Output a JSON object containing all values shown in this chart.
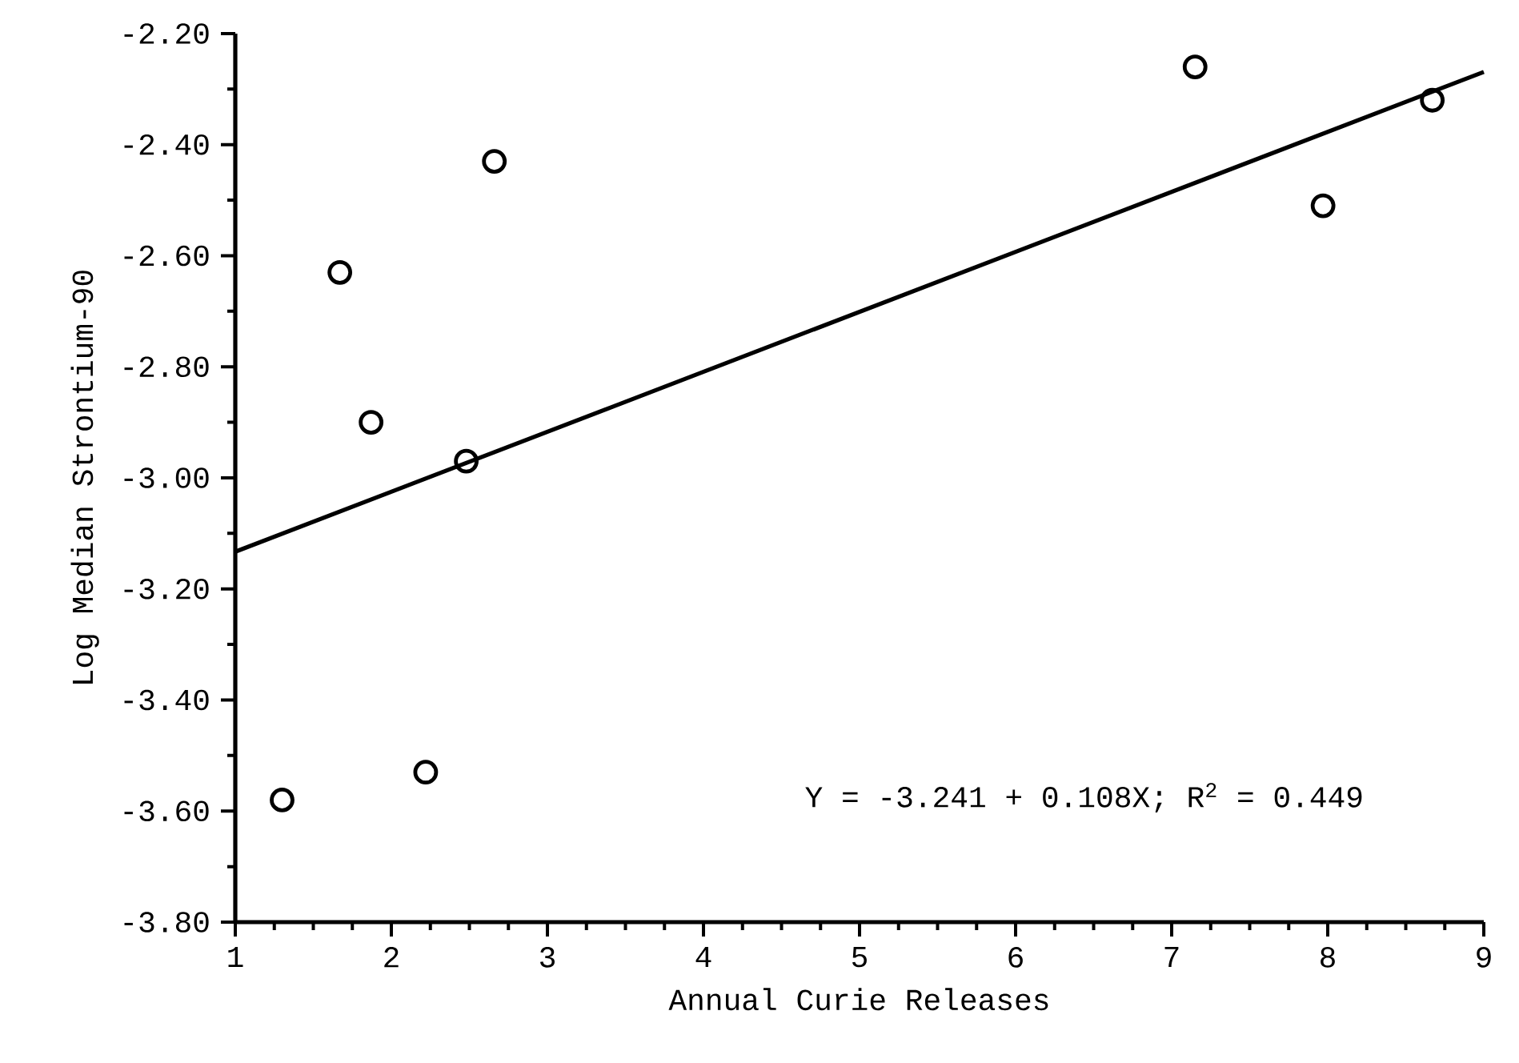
{
  "chart_data": {
    "type": "scatter",
    "xlabel": "Annual Curie Releases",
    "ylabel": "Log Median Strontium-90",
    "xlim": [
      1,
      9
    ],
    "xticks": [
      1,
      2,
      3,
      4,
      5,
      6,
      7,
      8,
      9
    ],
    "ylim": [
      -3.8,
      -2.2
    ],
    "yticks": [
      {
        "value": -3.8,
        "label": "-3.80"
      },
      {
        "value": -3.6,
        "label": "-3.60"
      },
      {
        "value": -3.4,
        "label": "-3.40"
      },
      {
        "value": -3.2,
        "label": "-3.20"
      },
      {
        "value": -3.0,
        "label": "-3.00"
      },
      {
        "value": -2.8,
        "label": "-2.80"
      },
      {
        "value": -2.6,
        "label": "-2.60"
      },
      {
        "value": -2.4,
        "label": "-2.40"
      },
      {
        "value": -2.2,
        "label": "-2.20"
      }
    ],
    "series": [
      {
        "color": "#000000",
        "marker": "circle",
        "x": [
          1.3,
          1.67,
          1.87,
          2.22,
          2.48,
          2.66,
          7.15,
          7.97,
          8.67
        ],
        "values": [
          -3.58,
          -2.63,
          -2.9,
          -3.53,
          -2.97,
          -2.43,
          -2.26,
          -2.51,
          -2.32
        ]
      },
      {
        "type": "line",
        "color": "#000000",
        "marker": "none",
        "line_style": "solid",
        "x": [
          1,
          9
        ],
        "values": [
          -3.133,
          -2.269
        ]
      }
    ],
    "annotations": [
      "Y = -3.241 + 0.108X; R$^{2}$  = 0.449"
    ]
  }
}
